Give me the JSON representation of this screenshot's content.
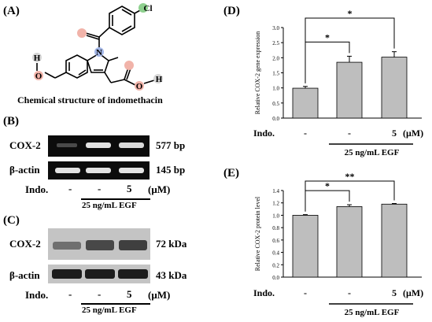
{
  "panels": {
    "A": {
      "letter": "(A)",
      "caption": "Chemical structure of indomethacin",
      "atoms": {
        "cl": "Cl",
        "n": "N",
        "h_left": "H",
        "o_left": "O",
        "o_right": "O",
        "h_right": "H"
      }
    },
    "B": {
      "letter": "(B)",
      "rows": [
        {
          "label": "COX-2",
          "size": "577 bp"
        },
        {
          "label": "β-actin",
          "size": "145 bp"
        }
      ],
      "indo_label": "Indo.",
      "lanes": [
        "-",
        "-",
        "5"
      ],
      "unit": "(μM)",
      "egf": "25 ng/mL EGF"
    },
    "C": {
      "letter": "(C)",
      "rows": [
        {
          "label": "COX-2",
          "size": "72 kDa"
        },
        {
          "label": "β-actin",
          "size": "43 kDa"
        }
      ],
      "indo_label": "Indo.",
      "lanes": [
        "-",
        "-",
        "5"
      ],
      "unit": "(μM)",
      "egf": "25 ng/mL EGF"
    }
  },
  "chart_data": [
    {
      "panel": "(D)",
      "type": "bar",
      "ylabel": "Relative COX-2 gene expression",
      "ylim": [
        0,
        3.0
      ],
      "yticks": [
        "0.0",
        "0.5",
        "1.0",
        "1.5",
        "2.0",
        "2.5",
        "3.0"
      ],
      "categories": [
        "-",
        "-",
        "5"
      ],
      "values": [
        0.99,
        1.85,
        2.02
      ],
      "errors": [
        0.06,
        0.2,
        0.18
      ],
      "significance": [
        {
          "from": 0,
          "to": 1,
          "label": "*"
        },
        {
          "from": 0,
          "to": 2,
          "label": "*"
        }
      ],
      "indo_label": "Indo.",
      "unit": "(μM)",
      "egf": "25 ng/mL EGF",
      "bar_color": "#bebebe"
    },
    {
      "panel": "(E)",
      "type": "bar",
      "ylabel": "Relative COX-2 protein level",
      "ylim": [
        0,
        1.4
      ],
      "yticks": [
        "0.0",
        "0.2",
        "0.4",
        "0.6",
        "0.8",
        "1.0",
        "1.2",
        "1.4"
      ],
      "categories": [
        "-",
        "-",
        "5"
      ],
      "values": [
        1.0,
        1.14,
        1.18
      ],
      "errors": [
        0.01,
        0.03,
        0.01
      ],
      "significance": [
        {
          "from": 0,
          "to": 1,
          "label": "*"
        },
        {
          "from": 0,
          "to": 2,
          "label": "**"
        }
      ],
      "indo_label": "Indo.",
      "unit": "(μM)",
      "egf": "25 ng/mL EGF",
      "bar_color": "#bebebe"
    }
  ]
}
